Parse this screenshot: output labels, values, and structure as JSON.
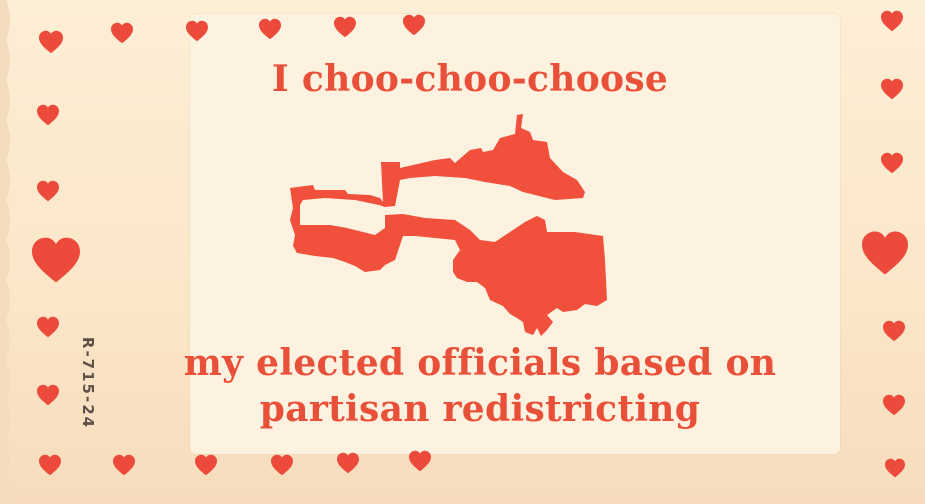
{
  "card": {
    "top_line": "I choo-choo-choose",
    "bottom_line_1": "my elected officials based on",
    "bottom_line_2": "partisan redistricting",
    "print_code": "R-715-24",
    "image": "gerrymandered-district-shape",
    "colors": {
      "accent": "#e8503a",
      "heart": "#ec4a3a",
      "paper": "#fbe8cc",
      "print_code": "#5e5248"
    }
  }
}
